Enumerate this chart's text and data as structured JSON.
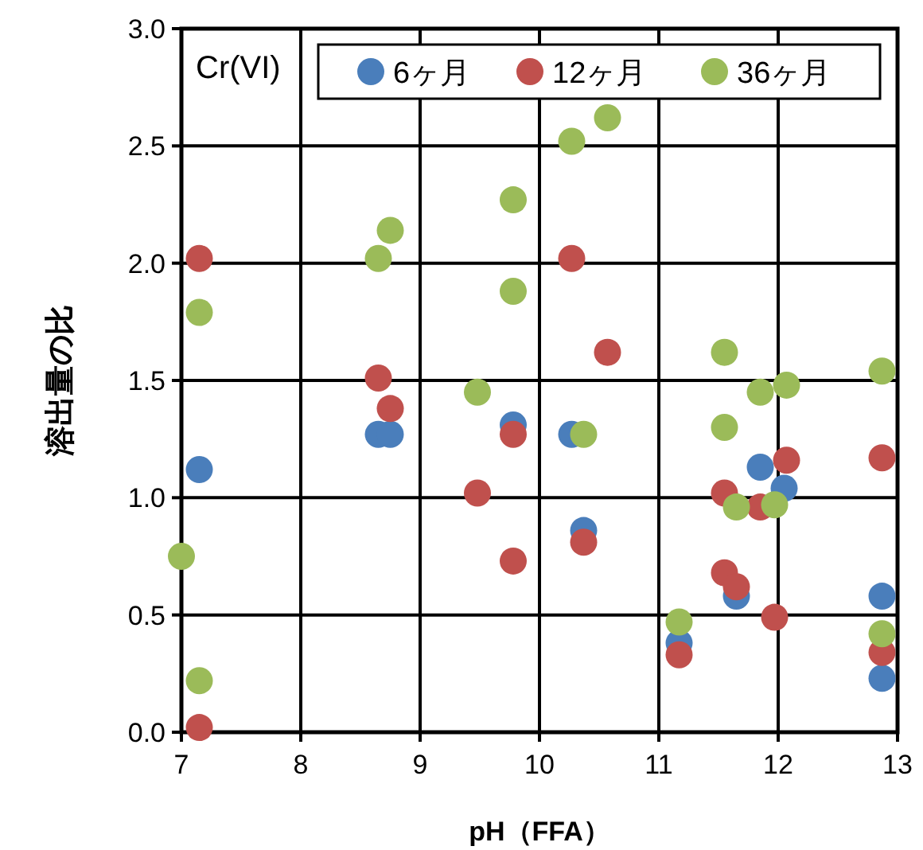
{
  "chart_data": {
    "type": "scatter",
    "xlabel": "pH（FFA）",
    "ylabel": "溶出量の比",
    "annotations": [
      "Cr(VI)"
    ],
    "xlim": [
      7,
      13
    ],
    "xticks": [
      7,
      8,
      9,
      10,
      11,
      12,
      13
    ],
    "ylim": [
      0,
      3
    ],
    "yticks": [
      {
        "value": 0,
        "label": "0.0"
      },
      {
        "value": 0.5,
        "label": "0.5"
      },
      {
        "value": 1,
        "label": "1.0"
      },
      {
        "value": 1.5,
        "label": "1.5"
      },
      {
        "value": 2,
        "label": "2.0"
      },
      {
        "value": 2.5,
        "label": "2.5"
      },
      {
        "value": 3,
        "label": "3.0"
      }
    ],
    "grid": true,
    "legend": "top right",
    "marker": "circle",
    "series": [
      {
        "name": "6ヶ月",
        "color": "#4a7ebb",
        "x": [
          7.15,
          8.65,
          8.75,
          9.78,
          10.27,
          10.37,
          11.17,
          11.65,
          11.85,
          12.05,
          12.87,
          12.87
        ],
        "values": [
          1.12,
          1.27,
          1.27,
          1.31,
          1.27,
          0.86,
          0.38,
          0.58,
          1.13,
          1.04,
          0.58,
          0.23
        ]
      },
      {
        "name": "12ヶ月",
        "color": "#c0504d",
        "x": [
          7.15,
          7.15,
          8.65,
          8.75,
          9.48,
          9.78,
          9.78,
          10.27,
          10.37,
          10.57,
          11.17,
          11.55,
          11.55,
          11.65,
          11.85,
          11.97,
          12.07,
          12.87,
          12.87
        ],
        "values": [
          2.02,
          0.02,
          1.51,
          1.38,
          1.02,
          1.27,
          0.73,
          2.02,
          0.81,
          1.62,
          0.33,
          1.02,
          0.68,
          0.62,
          0.96,
          0.49,
          1.16,
          1.17,
          0.34
        ]
      },
      {
        "name": "36ヶ月",
        "color": "#9bbb59",
        "x": [
          7.0,
          7.15,
          7.15,
          8.65,
          8.75,
          9.48,
          9.78,
          9.78,
          10.27,
          10.37,
          10.57,
          11.17,
          11.55,
          11.55,
          11.65,
          11.85,
          11.97,
          12.07,
          12.87,
          12.87
        ],
        "values": [
          0.75,
          1.79,
          0.22,
          2.02,
          2.14,
          1.45,
          2.27,
          1.88,
          2.52,
          1.27,
          2.62,
          0.47,
          1.62,
          1.3,
          0.96,
          1.45,
          0.97,
          1.48,
          1.54,
          0.42
        ]
      }
    ]
  }
}
